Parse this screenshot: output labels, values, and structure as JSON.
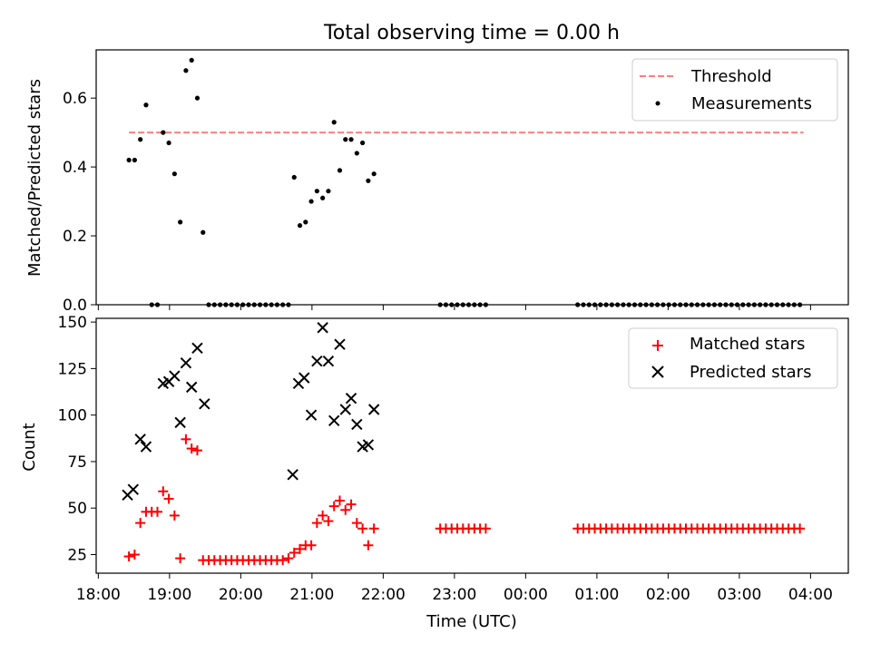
{
  "title": "Total observing time = 0.00 h",
  "colors": {
    "threshold": "#ff7f7f",
    "measurement": "#000000",
    "matched": "#ff0000",
    "predicted": "#000000"
  },
  "chart_data": [
    {
      "type": "scatter",
      "panel": "top",
      "xlabel": "",
      "ylabel": "Matched/Predicted stars",
      "xlim": [
        17.97,
        28.53
      ],
      "ylim": [
        0.0,
        0.74
      ],
      "yticks": [
        0.0,
        0.2,
        0.4,
        0.6
      ],
      "ytick_labels": [
        "0.0",
        "0.2",
        "0.4",
        "0.6"
      ],
      "legend_position": "top-right",
      "legend": [
        "Threshold",
        "Measurements"
      ],
      "threshold": {
        "name": "Threshold",
        "y": 0.5,
        "x_range": [
          18.43,
          27.9
        ],
        "style": "dashed"
      },
      "series": [
        {
          "name": "Measurements",
          "x": [
            18.43,
            18.51,
            18.59,
            18.67,
            18.75,
            18.83,
            18.91,
            18.99,
            19.07,
            19.15,
            19.23,
            19.31,
            19.39,
            19.47,
            19.55,
            19.63,
            19.71,
            19.79,
            19.87,
            19.95,
            20.03,
            20.11,
            20.19,
            20.27,
            20.35,
            20.43,
            20.51,
            20.59,
            20.67,
            20.75,
            20.83,
            20.91,
            20.99,
            21.07,
            21.15,
            21.23,
            21.31,
            21.39,
            21.47,
            21.55,
            21.63,
            21.71,
            21.79,
            21.87,
            22.8,
            22.88,
            22.96,
            23.04,
            23.12,
            23.2,
            23.28,
            23.36,
            23.44,
            24.73,
            24.81,
            24.89,
            24.97,
            25.05,
            25.13,
            25.21,
            25.29,
            25.37,
            25.45,
            25.53,
            25.61,
            25.69,
            25.77,
            25.85,
            25.93,
            26.01,
            26.09,
            26.17,
            26.25,
            26.33,
            26.41,
            26.49,
            26.57,
            26.65,
            26.73,
            26.81,
            26.89,
            26.97,
            27.05,
            27.13,
            27.21,
            27.29,
            27.37,
            27.45,
            27.53,
            27.61,
            27.69,
            27.77,
            27.85
          ],
          "y": [
            0.42,
            0.42,
            0.48,
            0.58,
            0.0,
            0.0,
            0.5,
            0.47,
            0.38,
            0.24,
            0.68,
            0.71,
            0.6,
            0.21,
            0.0,
            0.0,
            0.0,
            0.0,
            0.0,
            0.0,
            0.0,
            0.0,
            0.0,
            0.0,
            0.0,
            0.0,
            0.0,
            0.0,
            0.0,
            0.37,
            0.23,
            0.24,
            0.3,
            0.33,
            0.31,
            0.33,
            0.53,
            0.39,
            0.48,
            0.48,
            0.44,
            0.47,
            0.36,
            0.38,
            0.0,
            0.0,
            0.0,
            0.0,
            0.0,
            0.0,
            0.0,
            0.0,
            0.0,
            0.0,
            0.0,
            0.0,
            0.0,
            0.0,
            0.0,
            0.0,
            0.0,
            0.0,
            0.0,
            0.0,
            0.0,
            0.0,
            0.0,
            0.0,
            0.0,
            0.0,
            0.0,
            0.0,
            0.0,
            0.0,
            0.0,
            0.0,
            0.0,
            0.0,
            0.0,
            0.0,
            0.0,
            0.0,
            0.0,
            0.0,
            0.0,
            0.0,
            0.0,
            0.0,
            0.0,
            0.0,
            0.0,
            0.0,
            0.0
          ]
        }
      ]
    },
    {
      "type": "scatter",
      "panel": "bottom",
      "xlabel": "Time (UTC)",
      "ylabel": "Count",
      "xlim": [
        17.97,
        28.53
      ],
      "ylim": [
        15,
        152
      ],
      "yticks": [
        25,
        50,
        75,
        100,
        125,
        150
      ],
      "ytick_labels": [
        "25",
        "50",
        "75",
        "100",
        "125",
        "150"
      ],
      "xticks": [
        18,
        19,
        20,
        21,
        22,
        23,
        24,
        25,
        26,
        27,
        28
      ],
      "xtick_labels": [
        "18:00",
        "19:00",
        "20:00",
        "21:00",
        "22:00",
        "23:00",
        "00:00",
        "01:00",
        "02:00",
        "03:00",
        "04:00"
      ],
      "legend_position": "top-right",
      "legend": [
        "Matched stars",
        "Predicted stars"
      ],
      "series": [
        {
          "name": "Matched stars",
          "marker": "plus",
          "x": [
            18.43,
            18.51,
            18.59,
            18.67,
            18.75,
            18.83,
            18.91,
            18.99,
            19.07,
            19.15,
            19.23,
            19.31,
            19.39,
            19.47,
            19.55,
            19.63,
            19.71,
            19.79,
            19.87,
            19.95,
            20.03,
            20.11,
            20.19,
            20.27,
            20.35,
            20.43,
            20.51,
            20.59,
            20.67,
            20.75,
            20.83,
            20.91,
            20.99,
            21.07,
            21.15,
            21.23,
            21.31,
            21.39,
            21.47,
            21.55,
            21.63,
            21.71,
            21.79,
            21.87,
            22.8,
            22.88,
            22.96,
            23.04,
            23.12,
            23.2,
            23.28,
            23.36,
            23.44,
            24.73,
            24.81,
            24.89,
            24.97,
            25.05,
            25.13,
            25.21,
            25.29,
            25.37,
            25.45,
            25.53,
            25.61,
            25.69,
            25.77,
            25.85,
            25.93,
            26.01,
            26.09,
            26.17,
            26.25,
            26.33,
            26.41,
            26.49,
            26.57,
            26.65,
            26.73,
            26.81,
            26.89,
            26.97,
            27.05,
            27.13,
            27.21,
            27.29,
            27.37,
            27.45,
            27.53,
            27.61,
            27.69,
            27.77,
            27.85
          ],
          "y": [
            24,
            25,
            42,
            48,
            48,
            48,
            59,
            55,
            46,
            23,
            87,
            82,
            81,
            22,
            22,
            22,
            22,
            22,
            22,
            22,
            22,
            22,
            22,
            22,
            22,
            22,
            22,
            22,
            23,
            26,
            28,
            30,
            30,
            42,
            46,
            43,
            51,
            54,
            49,
            52,
            42,
            39,
            30,
            39,
            39,
            39,
            39,
            39,
            39,
            39,
            39,
            39,
            39,
            39,
            39,
            39,
            39,
            39,
            39,
            39,
            39,
            39,
            39,
            39,
            39,
            39,
            39,
            39,
            39,
            39,
            39,
            39,
            39,
            39,
            39,
            39,
            39,
            39,
            39,
            39,
            39,
            39,
            39,
            39,
            39,
            39,
            39,
            39,
            39,
            39,
            39,
            39,
            39
          ]
        },
        {
          "name": "Predicted stars",
          "marker": "x",
          "x": [
            18.41,
            18.49,
            18.59,
            18.67,
            18.91,
            18.99,
            19.07,
            19.15,
            19.23,
            19.31,
            19.39,
            19.49,
            20.73,
            20.81,
            20.89,
            20.99,
            21.07,
            21.15,
            21.23,
            21.31,
            21.39,
            21.47,
            21.55,
            21.63,
            21.71,
            21.79,
            21.87
          ],
          "y": [
            57,
            60,
            87,
            83,
            117,
            118,
            121,
            96,
            128,
            115,
            136,
            106,
            68,
            117,
            120,
            100,
            129,
            147,
            129,
            97,
            138,
            103,
            109,
            95,
            83,
            84,
            103
          ]
        }
      ]
    }
  ]
}
